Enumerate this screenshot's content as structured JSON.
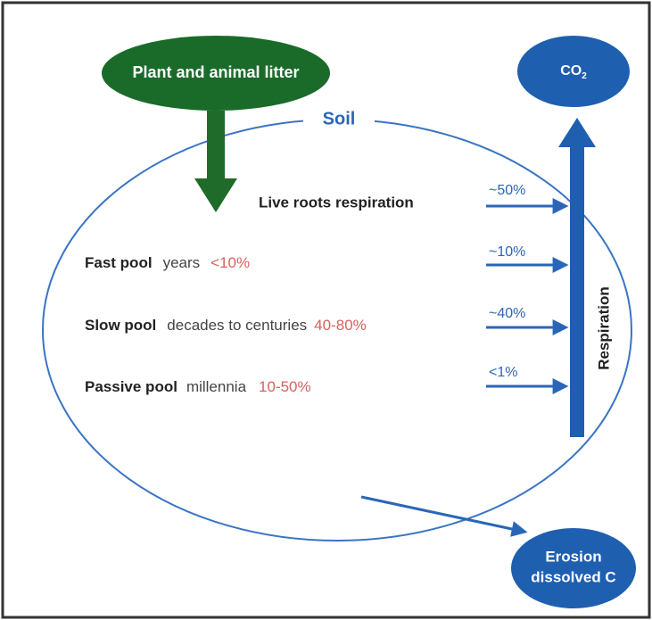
{
  "diagram": {
    "litter": "Plant and animal litter",
    "soil": "Soil",
    "co2": {
      "text": "CO",
      "subscript": "2"
    },
    "respiration": "Respiration",
    "live_roots": "Live roots respiration",
    "pools": [
      {
        "name": "Fast pool",
        "time": "years",
        "share": "<10%"
      },
      {
        "name": "Slow pool",
        "time": "decades to centuries",
        "share": "40-80%"
      },
      {
        "name": "Passive pool",
        "time": "millennia",
        "share": "10-50%"
      }
    ],
    "flows": [
      "~50%",
      "~10%",
      "~40%",
      "<1%"
    ],
    "erosion": [
      "Erosion",
      "dissolved C"
    ]
  }
}
